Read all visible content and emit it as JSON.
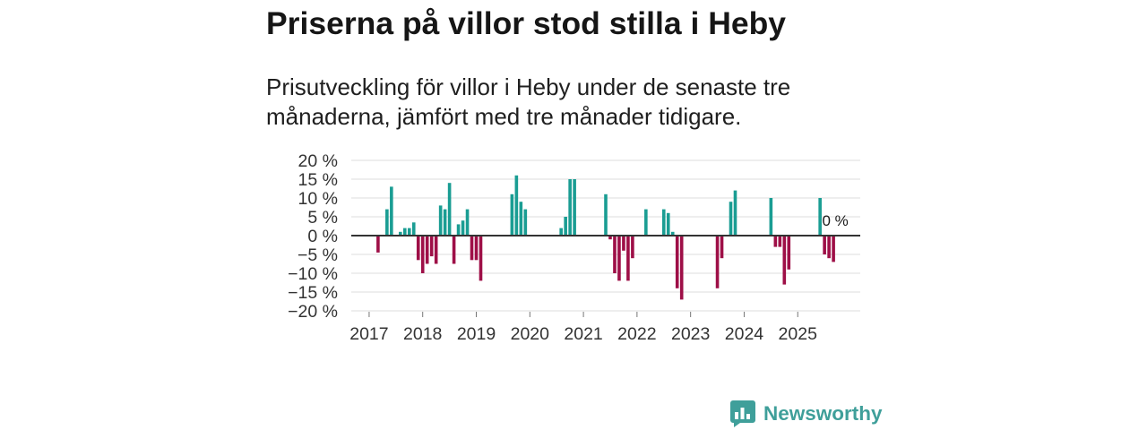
{
  "chart_data": {
    "type": "bar",
    "title": "Priserna på villor stod stilla i Heby",
    "subtitle": "Prisutveckling för villor i Heby under de senaste tre månaderna, jämfört med tre månader tidigare.",
    "xlabel": "",
    "ylabel": "",
    "ylim": [
      -20,
      20
    ],
    "xlim": [
      "2016-09",
      "2026-03"
    ],
    "grid": true,
    "yticks": [
      20,
      15,
      10,
      5,
      0,
      -5,
      -10,
      -15,
      -20
    ],
    "ytick_labels": [
      "20 %",
      "15 %",
      "10 %",
      "5 %",
      "0 %",
      "−5 %",
      "−10 %",
      "−15 %",
      "−20 %"
    ],
    "xticks": [
      "2017",
      "2018",
      "2019",
      "2020",
      "2021",
      "2022",
      "2023",
      "2024",
      "2025"
    ],
    "last_value_label": "0 %",
    "colors": {
      "positive": "#1a9d93",
      "negative": "#9e0f47",
      "grid": "#dedede",
      "zero_line": "#333333",
      "tick": "#777777"
    },
    "series": [
      {
        "points": [
          {
            "date": "2017-03",
            "value": -4.5
          },
          {
            "date": "2017-05",
            "value": 7
          },
          {
            "date": "2017-06",
            "value": 13
          },
          {
            "date": "2017-08",
            "value": 1
          },
          {
            "date": "2017-09",
            "value": 2
          },
          {
            "date": "2017-10",
            "value": 2
          },
          {
            "date": "2017-11",
            "value": 3.5
          },
          {
            "date": "2017-12",
            "value": -6.5
          },
          {
            "date": "2018-01",
            "value": -10
          },
          {
            "date": "2018-02",
            "value": -7.5
          },
          {
            "date": "2018-03",
            "value": -5.5
          },
          {
            "date": "2018-04",
            "value": -7.5
          },
          {
            "date": "2018-05",
            "value": 8
          },
          {
            "date": "2018-06",
            "value": 7
          },
          {
            "date": "2018-07",
            "value": 14
          },
          {
            "date": "2018-08",
            "value": -7.5
          },
          {
            "date": "2018-09",
            "value": 3
          },
          {
            "date": "2018-10",
            "value": 4
          },
          {
            "date": "2018-11",
            "value": 7
          },
          {
            "date": "2018-12",
            "value": -6.5
          },
          {
            "date": "2019-01",
            "value": -6.5
          },
          {
            "date": "2019-02",
            "value": -12
          },
          {
            "date": "2019-09",
            "value": 11
          },
          {
            "date": "2019-10",
            "value": 16
          },
          {
            "date": "2019-11",
            "value": 9
          },
          {
            "date": "2019-12",
            "value": 7
          },
          {
            "date": "2020-08",
            "value": 2
          },
          {
            "date": "2020-09",
            "value": 5
          },
          {
            "date": "2020-10",
            "value": 15
          },
          {
            "date": "2020-11",
            "value": 15
          },
          {
            "date": "2021-06",
            "value": 11
          },
          {
            "date": "2021-07",
            "value": -1
          },
          {
            "date": "2021-08",
            "value": -10
          },
          {
            "date": "2021-09",
            "value": -12
          },
          {
            "date": "2021-10",
            "value": -4
          },
          {
            "date": "2021-11",
            "value": -12
          },
          {
            "date": "2021-12",
            "value": -6
          },
          {
            "date": "2022-03",
            "value": 7
          },
          {
            "date": "2022-07",
            "value": 7
          },
          {
            "date": "2022-08",
            "value": 6
          },
          {
            "date": "2022-09",
            "value": 1
          },
          {
            "date": "2022-10",
            "value": -14
          },
          {
            "date": "2022-11",
            "value": -17
          },
          {
            "date": "2023-07",
            "value": -14
          },
          {
            "date": "2023-08",
            "value": -6
          },
          {
            "date": "2023-10",
            "value": 9
          },
          {
            "date": "2023-11",
            "value": 12
          },
          {
            "date": "2024-07",
            "value": 10
          },
          {
            "date": "2024-08",
            "value": -3
          },
          {
            "date": "2024-09",
            "value": -3
          },
          {
            "date": "2024-10",
            "value": -13
          },
          {
            "date": "2024-11",
            "value": -9
          },
          {
            "date": "2025-06",
            "value": 10
          },
          {
            "date": "2025-07",
            "value": -5
          },
          {
            "date": "2025-08",
            "value": -6
          },
          {
            "date": "2025-09",
            "value": -7
          },
          {
            "date": "2025-10",
            "value": 0
          }
        ]
      }
    ]
  },
  "brand": {
    "name": "Newsworthy",
    "color": "#3f9f9a",
    "icon": "newsworthy-logo-icon"
  }
}
